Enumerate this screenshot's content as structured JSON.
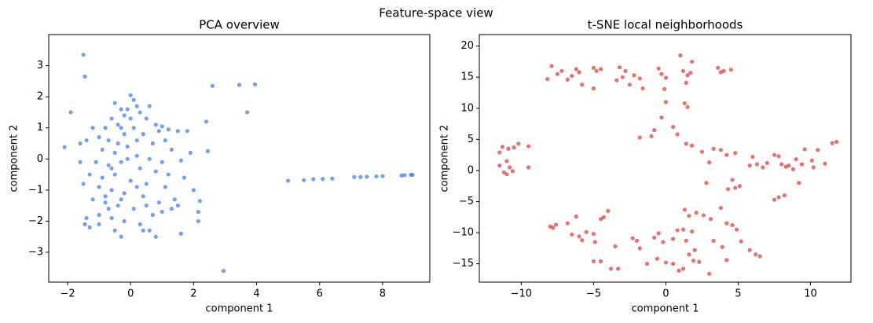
{
  "title": "Feature-space view",
  "chart_data": [
    {
      "type": "scatter",
      "title": "PCA overview",
      "x_label": "component 1",
      "y_label": "component 2",
      "color": "#2f6be0",
      "xlim": [
        -2.6,
        9.5
      ],
      "ylim": [
        -3.96,
        4.0
      ],
      "xticks": [
        {
          "value": -2,
          "label": "−2"
        },
        0,
        2,
        4,
        6,
        8
      ],
      "yticks": [
        {
          "value": -3,
          "label": "−3"
        },
        {
          "value": -2,
          "label": "−2"
        },
        {
          "value": -1,
          "label": "−1"
        },
        0,
        1,
        2,
        3
      ],
      "x": [
        -0.5,
        -0.3,
        0,
        0.1,
        0.2,
        -0.2,
        0.3,
        -0.6,
        -0.4,
        -0.8,
        0.5,
        0.8,
        1.0,
        1.2,
        1.5,
        -1.2,
        -1.4,
        -1.0,
        -0.7,
        -0.2,
        0.1,
        0.4,
        0.7,
        1.1,
        1.3,
        -0.9,
        -0.5,
        -0.1,
        0.2,
        0.6,
        1.0,
        1.6,
        -1.1,
        -0.7,
        -0.3,
        0.3,
        0.8,
        1.2,
        -1.3,
        -0.9,
        -0.5,
        0,
        0.5,
        1.1,
        -1.0,
        -0.6,
        -0.2,
        0.4,
        0.9,
        1.3,
        -1.2,
        -0.8,
        -0.4,
        0.1,
        0.7,
        -1.0,
        -0.6,
        -0.2,
        0.3,
        1.0,
        1.5,
        -1.4,
        -1.45,
        -1.3,
        -1.0,
        -0.7,
        -0.3,
        0.2,
        -0.1,
        -0.4,
        0.0,
        -0.3,
        0.2,
        -0.6,
        -0.8,
        -0.5,
        0.6,
        0.8,
        -1.6,
        -1.6,
        1.8,
        1.9,
        1.7,
        1.4,
        0.5,
        1.6,
        2.0,
        0.9,
        0.6,
        -0.1,
        -1.5,
        -1.45,
        -1.9,
        -2.1,
        2.6,
        3.45,
        3.95,
        3.7,
        2.95,
        2.45,
        2.4,
        2.2,
        2.15,
        2.15,
        -1.5,
        -0.3,
        0.4,
        5.0,
        5.5,
        5.8,
        6.1,
        6.4,
        7.1,
        7.3,
        7.5,
        7.8,
        8.0,
        8.6,
        8.7,
        8.9,
        8.95
      ],
      "values": [
        1.8,
        1.6,
        2.05,
        1.9,
        1.7,
        1.4,
        1.5,
        1.3,
        1.1,
        1.0,
        1.3,
        1.1,
        1.05,
        0.95,
        0.9,
        1.0,
        0.6,
        0.7,
        0.6,
        0.8,
        1.0,
        0.8,
        0.5,
        0.6,
        0.3,
        0.3,
        0.2,
        0.4,
        0.1,
        0.0,
        -0.1,
        -0.05,
        -0.1,
        -0.2,
        -0.1,
        -0.3,
        -0.4,
        -0.5,
        -0.5,
        -0.6,
        -0.5,
        -0.7,
        -0.8,
        -0.9,
        -0.9,
        -1.0,
        -1.1,
        -1.2,
        -1.4,
        -1.6,
        -1.3,
        -1.4,
        -1.5,
        -1.6,
        -1.8,
        -1.8,
        -1.9,
        -2.0,
        -2.1,
        -1.7,
        -1.5,
        -1.9,
        -2.1,
        -2.2,
        -2.1,
        -1.6,
        -1.3,
        -0.9,
        0.0,
        0.5,
        1.3,
        1.0,
        0.6,
        -0.3,
        -1.2,
        -2.3,
        -2.3,
        -2.5,
        -0.1,
        0.5,
        0.9,
        0.2,
        -0.6,
        -1.3,
        -1.5,
        -2.4,
        -1.0,
        0.9,
        1.7,
        1.6,
        3.35,
        2.65,
        1.5,
        0.38,
        2.35,
        2.38,
        2.4,
        1.5,
        -3.6,
        0.25,
        1.2,
        -1.35,
        -2.0,
        -1.7,
        -0.8,
        -2.5,
        -2.3,
        -0.7,
        -0.68,
        -0.65,
        -0.64,
        -0.63,
        -0.58,
        -0.58,
        -0.57,
        -0.56,
        -0.55,
        -0.53,
        -0.52,
        -0.51,
        -0.51
      ]
    },
    {
      "type": "scatter",
      "title": "t-SNE local neighborhoods",
      "x_label": "component 1",
      "y_label": "component 2",
      "color": "#d62728",
      "xlim": [
        -12.9,
        12.8
      ],
      "ylim": [
        -17.95,
        21.85
      ],
      "xticks": [
        {
          "value": -10,
          "label": "−10"
        },
        {
          "value": -5,
          "label": "−5"
        },
        0,
        5,
        10
      ],
      "yticks": [
        {
          "value": -15,
          "label": "−15"
        },
        {
          "value": -10,
          "label": "−10"
        },
        {
          "value": -5,
          "label": "−5"
        },
        0,
        5,
        10,
        15,
        20
      ],
      "x": [
        -8.2,
        -7.9,
        -7.5,
        -7.2,
        -6.8,
        -6.5,
        -6.2,
        -6.0,
        -5.8,
        -5.0,
        -4.8,
        -4.5,
        -5.0,
        -3.2,
        -3.0,
        -2.8,
        -3.4,
        -2.5,
        -2.2,
        -1.8,
        -1.6,
        -0.5,
        -0.3,
        0.0,
        -0.1,
        1.2,
        1.5,
        1.7,
        1.8,
        1.4,
        3.6,
        3.8,
        4.0,
        4.5,
        1.0,
        0,
        -0.3,
        1.3,
        1.5,
        0.5,
        -0.8,
        -1.0,
        -1.8,
        0.8,
        1.4,
        1.8,
        2.5,
        3.3,
        3.8,
        4.2,
        4.8,
        6.0,
        3.0,
        5.8,
        6.3,
        6.7,
        7.0,
        7.5,
        7.8,
        8.0,
        8.3,
        8.8,
        8.5,
        9.0,
        9.6,
        10.1,
        10.5,
        11.0,
        11.5,
        11.8,
        9.4,
        10.2,
        4.6,
        4.3,
        4.8,
        5.1,
        2.8,
        7.8,
        7.5,
        9.2,
        8.2,
        -11.5,
        -11.2,
        -11.0,
        -10.8,
        -11.3,
        -10.9,
        -10.5,
        -10.2,
        -9.5,
        -9.5,
        -10.6,
        -11.0,
        -11.5,
        -8.0,
        -7.6,
        -7.8,
        -6.8,
        -6.2,
        -6.5,
        -6.0,
        -5.5,
        -5.0,
        -5.8,
        -4.9,
        -4.5,
        -4.3,
        -4.0,
        -5.0,
        -4.5,
        -3.8,
        -3.3,
        -3.5,
        -2.3,
        -2.0,
        -1.8,
        -0.8,
        -0.5,
        -0.2,
        0.5,
        0.8,
        1.2,
        1.4,
        1.8,
        1.3,
        1.6,
        2.1,
        2.6,
        3.1,
        3.8,
        4.2,
        4.6,
        4.9,
        5.2,
        5.8,
        6.2,
        6.5,
        0.0,
        0.5,
        0.9,
        1.2,
        1.6,
        1.9,
        2.3,
        2.0,
        3.3,
        3.9,
        4.2,
        -1.3,
        -0.6,
        3.0
      ],
      "values": [
        14.7,
        16.8,
        15.5,
        16.0,
        14.6,
        15.2,
        16.3,
        15.8,
        13.8,
        16.5,
        16.0,
        16.3,
        13.2,
        16.6,
        15.0,
        16.0,
        14.5,
        13.8,
        15.3,
        14.8,
        13.2,
        16.4,
        15.5,
        14.9,
        13.1,
        16.0,
        15.3,
        15.7,
        17.5,
        14.1,
        16.5,
        15.8,
        16.0,
        16.2,
        18.5,
        11,
        8.5,
        10.8,
        10.2,
        7,
        6.5,
        5.5,
        5.3,
        5.8,
        4.3,
        4.0,
        3.0,
        3.5,
        3.3,
        2.5,
        2.8,
        2.2,
        1.3,
        0.8,
        1.0,
        0.5,
        1.2,
        2.5,
        2.3,
        1.0,
        0.6,
        0.2,
        0.8,
        1.8,
        3.4,
        1.6,
        3.3,
        1.1,
        4.4,
        4.6,
        1.0,
        0.5,
        -1.5,
        -3.0,
        -2.8,
        -2.5,
        -2.0,
        -4.3,
        -4.7,
        -2.0,
        -4.0,
        0.8,
        -0.3,
        1.5,
        0.5,
        3.8,
        3.5,
        3.7,
        4.3,
        3.9,
        0.5,
        -0.1,
        -0.6,
        2.9,
        -9.0,
        -8.7,
        -9.2,
        -8.5,
        -7.4,
        -10.3,
        -10.6,
        -9.9,
        -10.2,
        -11.2,
        -11.5,
        -7.8,
        -7.5,
        -6.5,
        -14.6,
        -14.6,
        -15.8,
        -15.8,
        -12.2,
        -10.9,
        -11.3,
        -12.5,
        -10.8,
        -10.1,
        -11.5,
        -11.0,
        -9.6,
        -9.5,
        -11.3,
        -9.8,
        -6.3,
        -7.3,
        -6.8,
        -7.2,
        -7.8,
        -6.0,
        -8.5,
        -8.8,
        -9.5,
        -11.4,
        -12.8,
        -13.5,
        -13.8,
        -14.8,
        -15.0,
        -16.1,
        -15.8,
        -13.5,
        -14.5,
        -14.7,
        -12.8,
        -11.3,
        -12.3,
        -14.4,
        -15.0,
        -14.2,
        -16.6
      ]
    }
  ]
}
